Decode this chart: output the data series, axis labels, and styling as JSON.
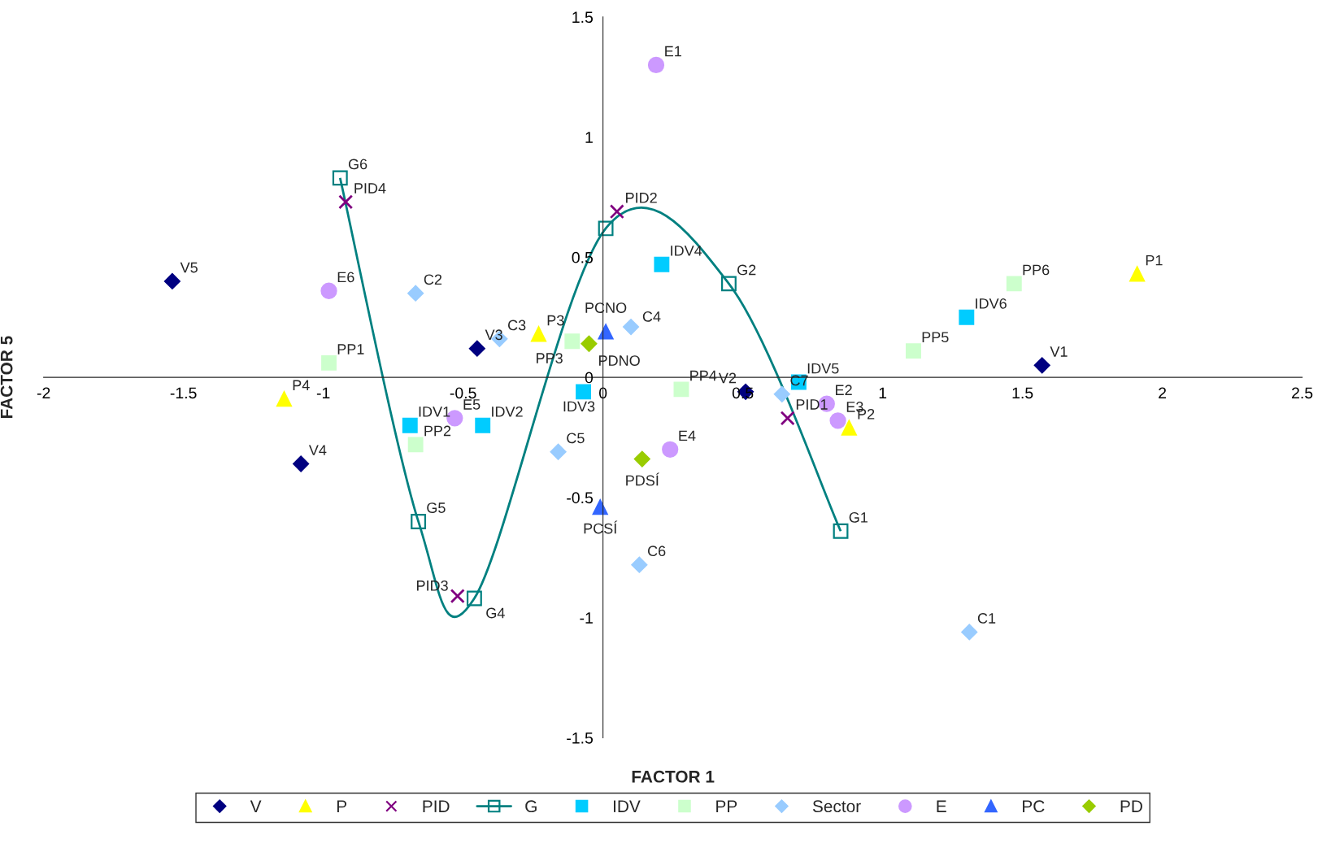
{
  "chart_data": {
    "type": "scatter",
    "xlabel": "FACTOR 1",
    "ylabel": "FACTOR 5",
    "xlim": [
      -2,
      2.5
    ],
    "xticks": [
      -2,
      -1.5,
      -1,
      -0.5,
      0,
      0.5,
      1,
      1.5,
      2,
      2.5
    ],
    "ylim": [
      -1.5,
      1.5
    ],
    "yticks": [
      -1.5,
      -1,
      -0.5,
      0,
      0.5,
      1,
      1.5
    ],
    "grid": false,
    "legend": "bottom",
    "series": [
      {
        "name": "V",
        "marker": "diamond",
        "color": "#000080",
        "x": [
          -1.54,
          -1.08,
          -0.45,
          0.51,
          1.57
        ],
        "values": [
          0.4,
          -0.36,
          0.12,
          -0.06,
          0.05
        ]
      },
      {
        "name": "P",
        "marker": "triangle",
        "color": "#ffff00",
        "x": [
          1.91,
          -1.14,
          -0.23,
          0.88
        ],
        "values": [
          0.43,
          -0.09,
          0.18,
          -0.21
        ]
      },
      {
        "name": "PID",
        "marker": "cross",
        "color": "#800080",
        "x": [
          -0.92,
          0.05,
          -0.52,
          0.66
        ],
        "values": [
          0.73,
          0.69,
          -0.91,
          -0.17
        ]
      },
      {
        "name": "G",
        "type": "line",
        "marker": "square",
        "color": "#008080",
        "x": [
          -0.94,
          -0.66,
          -0.46,
          0.01,
          0.45,
          0.85
        ],
        "values": [
          0.83,
          -0.6,
          -0.92,
          0.62,
          0.39,
          -0.64
        ]
      },
      {
        "name": "IDV",
        "marker": "square",
        "color": "#00ccff",
        "x": [
          0.21,
          1.3,
          0.7,
          -0.69,
          -0.43,
          -0.07
        ],
        "values": [
          0.47,
          0.25,
          -0.02,
          -0.2,
          -0.2,
          -0.06
        ]
      },
      {
        "name": "PP",
        "marker": "square",
        "color": "#ccffcc",
        "x": [
          1.47,
          1.11,
          -0.98,
          -0.11,
          0.28,
          -0.67
        ],
        "values": [
          0.39,
          0.11,
          0.06,
          0.15,
          -0.05,
          -0.28
        ]
      },
      {
        "name": "Sector",
        "marker": "diamond",
        "color": "#99ccff",
        "x": [
          1.31,
          -0.67,
          -0.37,
          0.1,
          -0.16,
          0.13,
          0.64
        ],
        "values": [
          -1.06,
          0.35,
          0.16,
          0.21,
          -0.31,
          -0.78,
          -0.07
        ]
      },
      {
        "name": "E",
        "marker": "circle",
        "color": "#cc99ff",
        "x": [
          0.19,
          -0.98,
          -0.53,
          0.8,
          0.84,
          0.24
        ],
        "values": [
          1.3,
          0.36,
          -0.17,
          -0.11,
          -0.18,
          -0.3
        ]
      },
      {
        "name": "PC",
        "marker": "triangle",
        "color": "#3366ff",
        "x": [
          0.01,
          -0.01
        ],
        "values": [
          0.19,
          -0.54
        ]
      },
      {
        "name": "PD",
        "marker": "diamond",
        "color": "#99cc00",
        "x": [
          -0.05,
          0.14
        ],
        "values": [
          0.14,
          -0.34
        ]
      }
    ],
    "annotations": [
      {
        "text": "V5",
        "x": -1.54,
        "y": 0.4
      },
      {
        "text": "V4",
        "x": -1.08,
        "y": -0.36
      },
      {
        "text": "V3",
        "x": -0.45,
        "y": 0.12
      },
      {
        "text": "V2",
        "x": 0.51,
        "y": -0.06
      },
      {
        "text": "V1",
        "x": 1.57,
        "y": 0.05
      },
      {
        "text": "P1",
        "x": 1.91,
        "y": 0.43
      },
      {
        "text": "P4",
        "x": -1.14,
        "y": -0.09
      },
      {
        "text": "P3",
        "x": -0.23,
        "y": 0.18
      },
      {
        "text": "P2",
        "x": 0.88,
        "y": -0.21
      },
      {
        "text": "PID4",
        "x": -0.92,
        "y": 0.73
      },
      {
        "text": "PID2",
        "x": 0.05,
        "y": 0.69
      },
      {
        "text": "PID3",
        "x": -0.52,
        "y": -0.91
      },
      {
        "text": "PID1",
        "x": 0.66,
        "y": -0.17
      },
      {
        "text": "G6",
        "x": -0.94,
        "y": 0.83
      },
      {
        "text": "G5",
        "x": -0.66,
        "y": -0.6
      },
      {
        "text": "G4",
        "x": -0.46,
        "y": -0.92
      },
      {
        "text": "G2",
        "x": 0.45,
        "y": 0.39
      },
      {
        "text": "G1",
        "x": 0.85,
        "y": -0.64
      },
      {
        "text": "IDV4",
        "x": 0.21,
        "y": 0.47
      },
      {
        "text": "IDV6",
        "x": 1.3,
        "y": 0.25
      },
      {
        "text": "IDV5",
        "x": 0.7,
        "y": -0.02
      },
      {
        "text": "IDV1",
        "x": -0.69,
        "y": -0.2
      },
      {
        "text": "IDV2",
        "x": -0.43,
        "y": -0.2
      },
      {
        "text": "IDV3",
        "x": -0.07,
        "y": -0.06
      },
      {
        "text": "PP6",
        "x": 1.47,
        "y": 0.39
      },
      {
        "text": "PP5",
        "x": 1.11,
        "y": 0.11
      },
      {
        "text": "PP1",
        "x": -0.98,
        "y": 0.06
      },
      {
        "text": "PP3",
        "x": -0.11,
        "y": 0.15
      },
      {
        "text": "PP4",
        "x": 0.28,
        "y": -0.05
      },
      {
        "text": "PP2",
        "x": -0.67,
        "y": -0.28
      },
      {
        "text": "C1",
        "x": 1.31,
        "y": -1.06
      },
      {
        "text": "C2",
        "x": -0.67,
        "y": 0.35
      },
      {
        "text": "C3",
        "x": -0.37,
        "y": 0.16
      },
      {
        "text": "C4",
        "x": 0.1,
        "y": 0.21
      },
      {
        "text": "C5",
        "x": -0.16,
        "y": -0.31
      },
      {
        "text": "C6",
        "x": 0.13,
        "y": -0.78
      },
      {
        "text": "C7",
        "x": 0.64,
        "y": -0.07
      },
      {
        "text": "E1",
        "x": 0.19,
        "y": 1.3
      },
      {
        "text": "E6",
        "x": -0.98,
        "y": 0.36
      },
      {
        "text": "E5",
        "x": -0.53,
        "y": -0.17
      },
      {
        "text": "E2",
        "x": 0.8,
        "y": -0.11
      },
      {
        "text": "E3",
        "x": 0.84,
        "y": -0.18
      },
      {
        "text": "E4",
        "x": 0.24,
        "y": -0.3
      },
      {
        "text": "PCNO",
        "x": 0.01,
        "y": 0.19
      },
      {
        "text": "PCSÍ",
        "x": -0.01,
        "y": -0.54
      },
      {
        "text": "PDNO",
        "x": -0.05,
        "y": 0.14
      },
      {
        "text": "PDSÍ",
        "x": 0.14,
        "y": -0.34
      }
    ]
  }
}
